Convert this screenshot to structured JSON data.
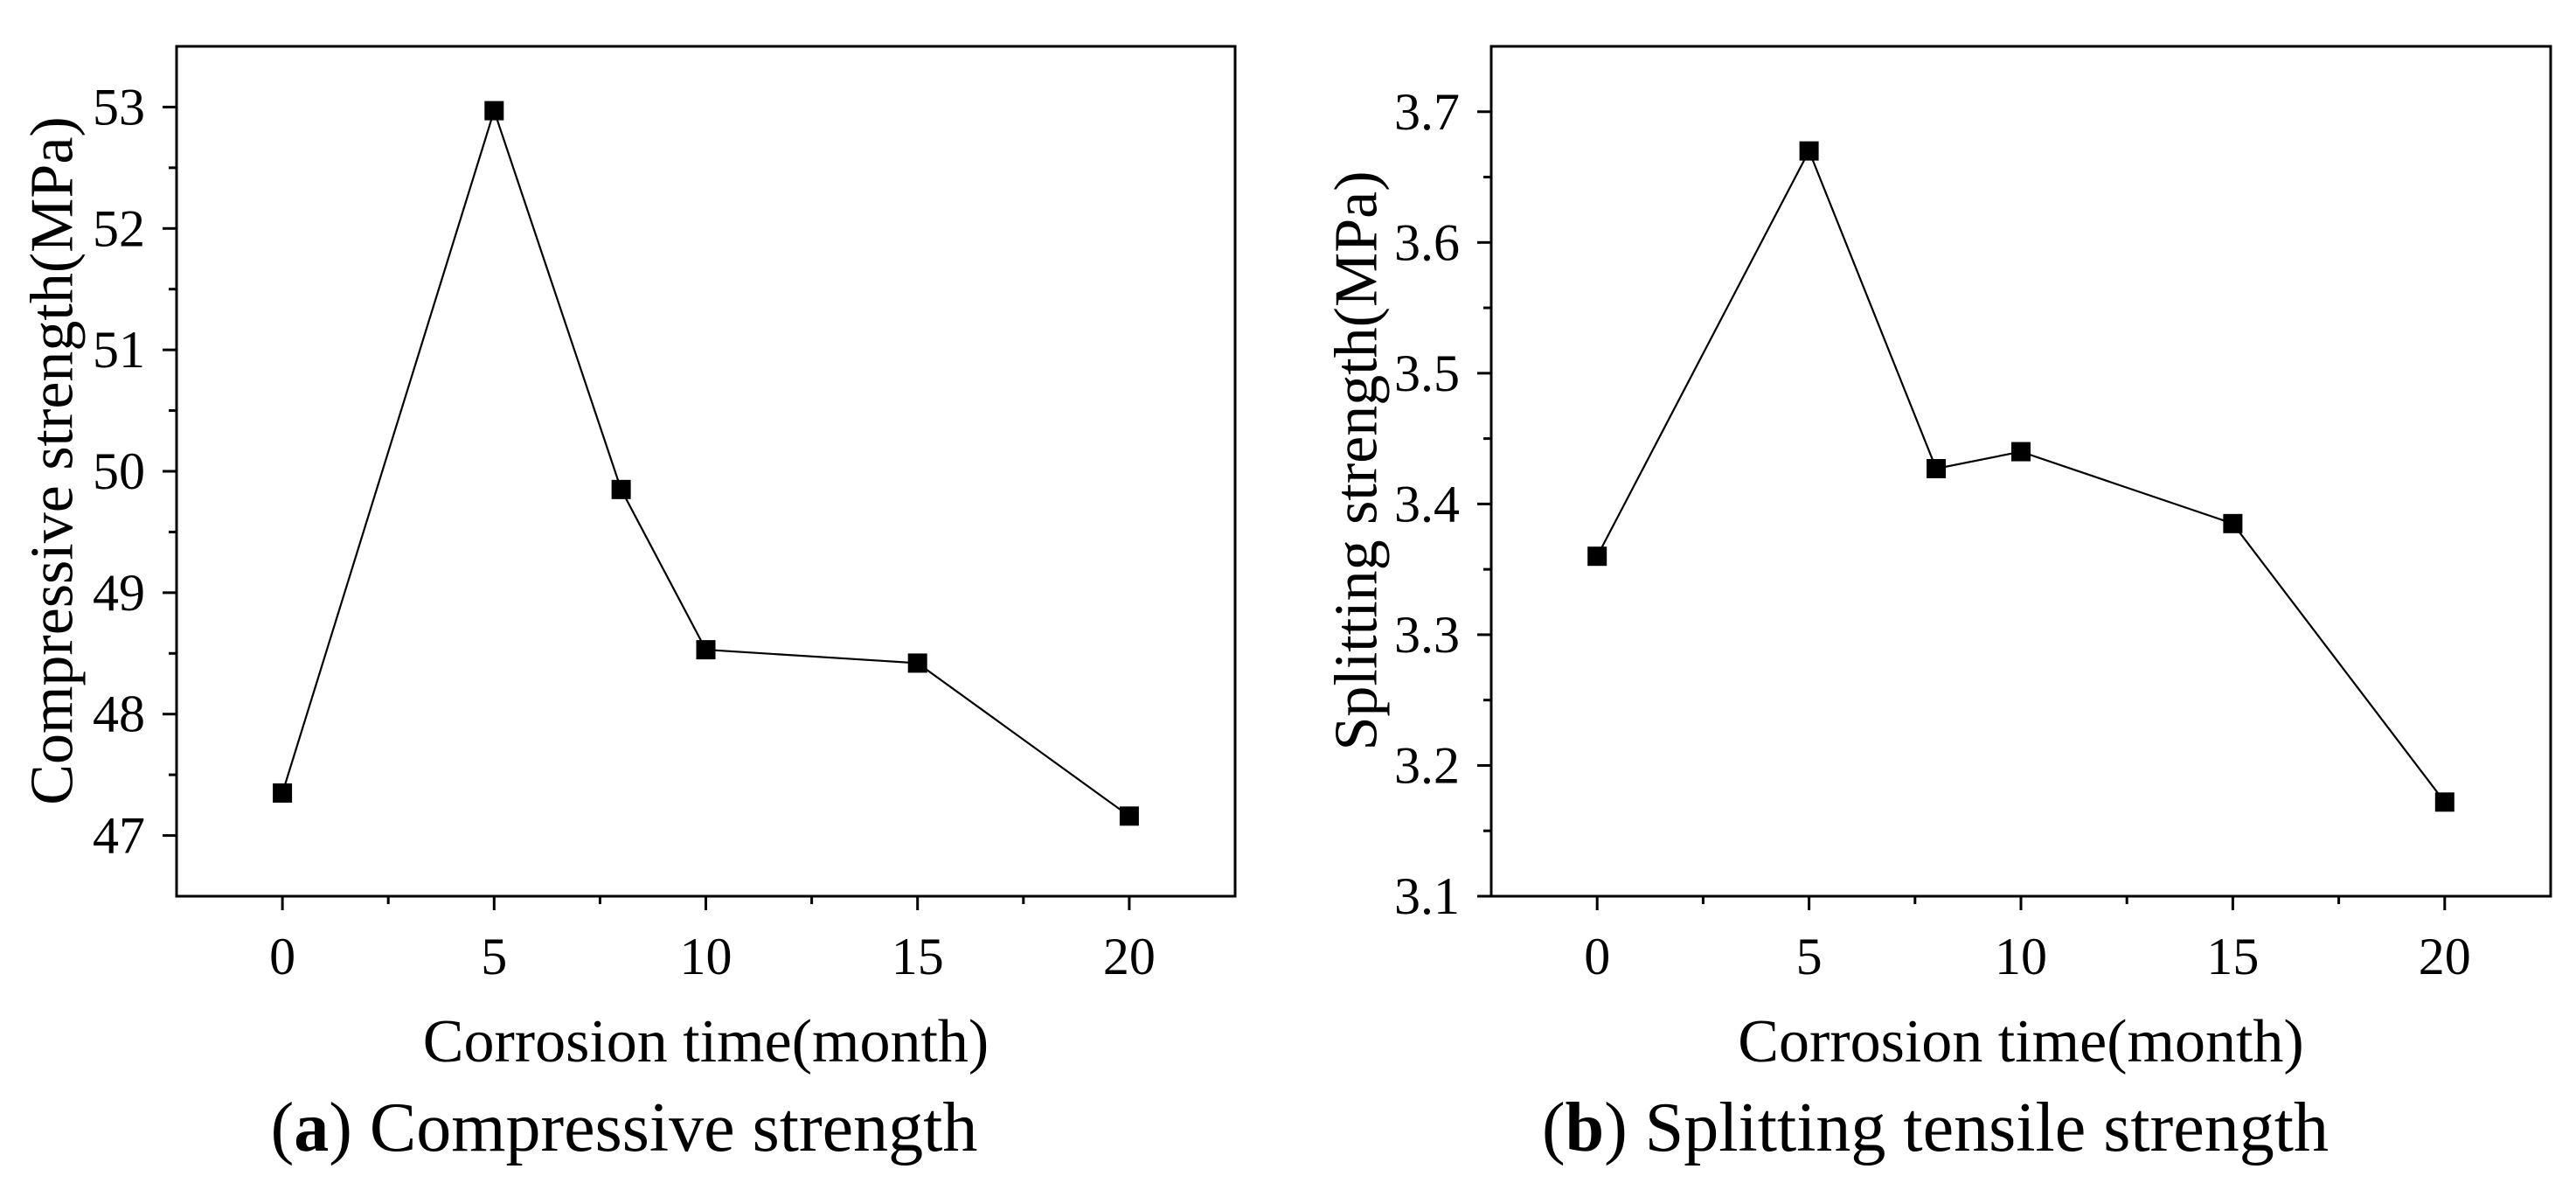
{
  "figure": {
    "background": "#ffffff",
    "ink_color": "#000000"
  },
  "chart_data": [
    {
      "type": "line",
      "panel": "a",
      "caption": [
        {
          "text": "(",
          "bold": false
        },
        {
          "text": "a",
          "bold": true
        },
        {
          "text": ") Compressive strength",
          "bold": false
        }
      ],
      "xlabel": "Corrosion time(month)",
      "ylabel": "Compressive strength(MPa)",
      "xlim": [
        -2.5,
        22.5
      ],
      "ylim": [
        46.5,
        53.5
      ],
      "xticks": [
        0,
        5,
        10,
        15,
        20
      ],
      "xticklabels": [
        "0",
        "5",
        "10",
        "15",
        "20"
      ],
      "x_minor_step": 2.5,
      "yticks": [
        47,
        48,
        49,
        50,
        51,
        52,
        53
      ],
      "yticklabels": [
        "47",
        "48",
        "49",
        "50",
        "51",
        "52",
        "53"
      ],
      "y_minor_step": 0.5,
      "grid": false,
      "series": [
        {
          "marker": "square",
          "x": [
            0,
            5,
            8,
            10,
            15,
            20
          ],
          "y": [
            47.35,
            52.97,
            49.85,
            48.53,
            48.42,
            47.16
          ]
        }
      ]
    },
    {
      "type": "line",
      "panel": "b",
      "caption": [
        {
          "text": "(",
          "bold": false
        },
        {
          "text": "b",
          "bold": true
        },
        {
          "text": ") Splitting tensile strength",
          "bold": false
        }
      ],
      "xlabel": "Corrosion time(month)",
      "ylabel": "Splitting strength(MPa)",
      "xlim": [
        -2.5,
        22.5
      ],
      "ylim": [
        3.1,
        3.75
      ],
      "xticks": [
        0,
        5,
        10,
        15,
        20
      ],
      "xticklabels": [
        "0",
        "5",
        "10",
        "15",
        "20"
      ],
      "x_minor_step": 2.5,
      "yticks": [
        3.1,
        3.2,
        3.3,
        3.4,
        3.5,
        3.6,
        3.7
      ],
      "yticklabels": [
        "3.1",
        "3.2",
        "3.3",
        "3.4",
        "3.5",
        "3.6",
        "3.7"
      ],
      "y_minor_step": 0.05,
      "grid": false,
      "series": [
        {
          "marker": "square",
          "x": [
            0,
            5,
            8,
            10,
            15,
            20
          ],
          "y": [
            3.36,
            3.67,
            3.427,
            3.44,
            3.385,
            3.172
          ]
        }
      ]
    }
  ]
}
